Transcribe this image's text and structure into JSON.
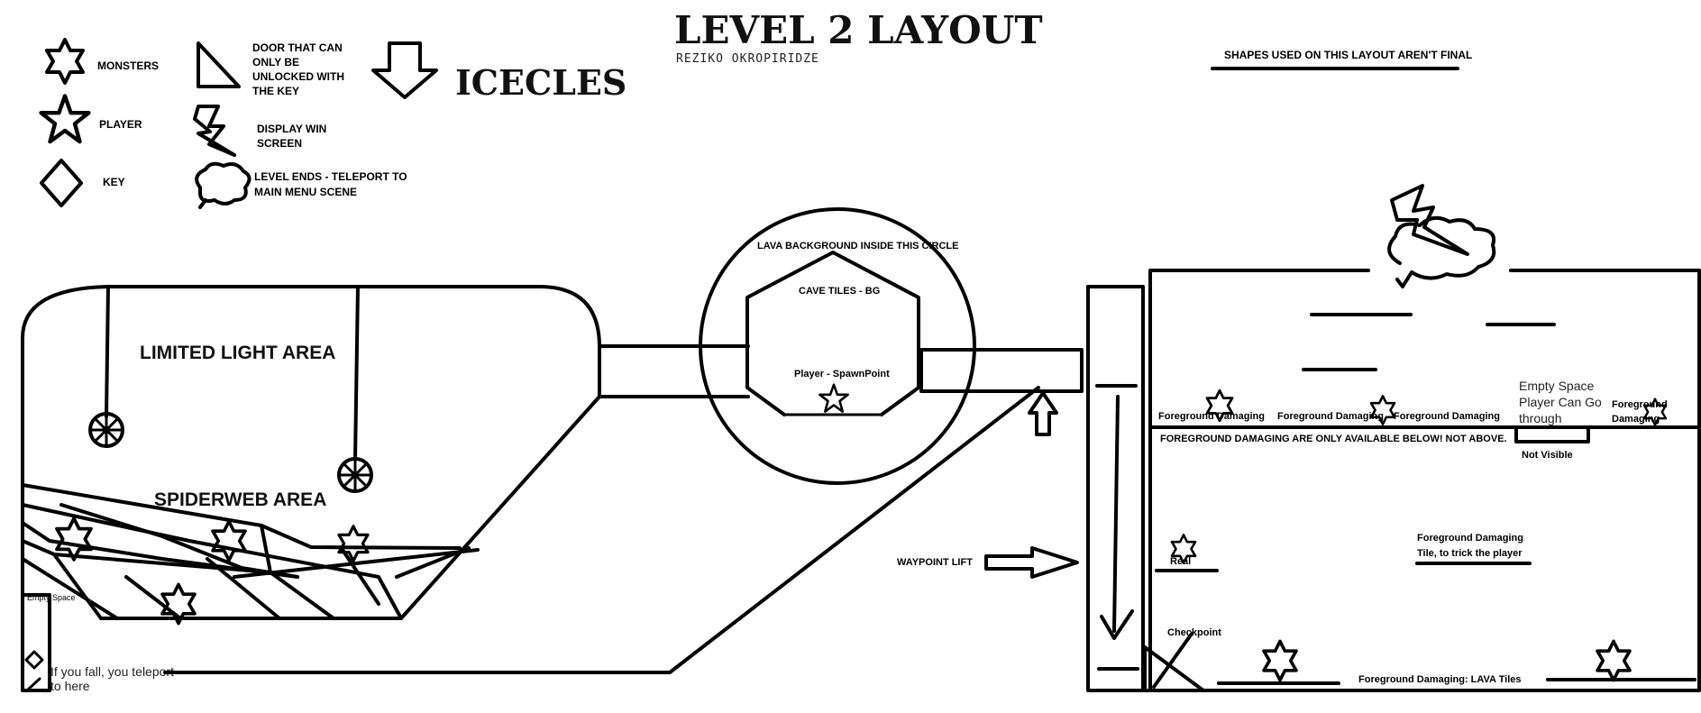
{
  "title": "LEVEL 2 LAYOUT",
  "author": "REZIKO OKROPIRIDZE",
  "note": "SHAPES USED ON THIS LAYOUT AREN'T FINAL",
  "legend": {
    "monsters": "MONSTERS",
    "player": "PLAYER",
    "key": "KEY",
    "door": [
      "DOOR THAT CAN",
      "ONLY BE",
      "UNLOCKED WITH",
      "THE KEY"
    ],
    "win": [
      "DISPLAY WIN",
      "SCREEN"
    ],
    "level_end": [
      "LEVEL ENDS - TELEPORT TO",
      "MAIN MENU SCENE"
    ],
    "icicles": "ICECLES"
  },
  "areas": {
    "limited_light": "LIMITED LIGHT AREA",
    "spiderweb": "SPIDERWEB AREA",
    "empty_space": "Empty Space",
    "fall": [
      "If you fall, you teleport",
      "to here"
    ]
  },
  "spawn": {
    "lava_bg": "LAVA BACKGROUND INSIDE THIS CIRCLE",
    "cave_tiles": "CAVE TILES - BG",
    "spawn_point": "Player - SpawnPoint"
  },
  "waypoint_lift": "WAYPOINT LIFT",
  "right_room": {
    "fg1": "Foreground Damaging",
    "fg2": "Foreground Damaging",
    "fg3": "Foreground Damaging",
    "fg4": [
      "Foreground",
      "Damaging"
    ],
    "empty_space": [
      "Empty Space",
      "Player Can Go",
      "through"
    ],
    "warning": "FOREGROUND DAMAGING ARE ONLY AVAILABLE BELOW! NOT ABOVE.",
    "not_visible": "Not Visible",
    "trick": [
      "Foreground Damaging",
      "Tile, to trick the player"
    ],
    "real": "Real",
    "checkpoint": "Checkpoint",
    "lava_tiles": "Foreground Damaging: LAVA Tiles"
  }
}
